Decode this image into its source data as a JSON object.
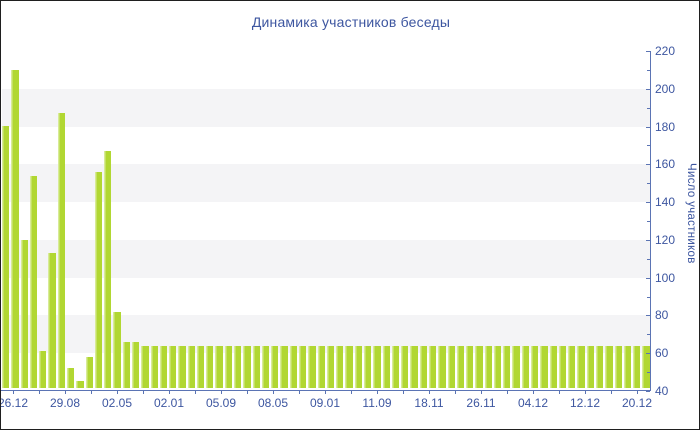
{
  "title": "Динамика участников беседы",
  "y_axis_title": "Число участников",
  "colors": {
    "bar": "#b1d732",
    "bar_edge": "#d8eb97",
    "stripe": "#f4f4f6",
    "axis": "#5b74b4",
    "text": "#3d56a0",
    "border": "#1f1f1f",
    "background": "#ffffff"
  },
  "chart_data": {
    "type": "bar",
    "title": "Динамика участников беседы",
    "xlabel": "",
    "ylabel": "Число участников",
    "ylim": [
      40,
      220
    ],
    "y_major_ticks": [
      40,
      60,
      80,
      100,
      120,
      140,
      160,
      180,
      200,
      220
    ],
    "y_minor_tick_step": 10,
    "gray_bands": [
      [
        60,
        80
      ],
      [
        100,
        120
      ],
      [
        140,
        160
      ],
      [
        180,
        200
      ]
    ],
    "grid": "alternating-horizontal-bands",
    "legend": "none",
    "y_axis_side": "right",
    "x_tick_labels": [
      "26.12",
      "29.08",
      "02.05",
      "02.01",
      "05.09",
      "08.05",
      "09.01",
      "11.09",
      "18.11",
      "26.11",
      "04.12",
      "12.12",
      "20.12"
    ],
    "values": [
      179,
      209,
      119,
      153,
      60,
      112,
      186,
      51,
      44,
      57,
      155,
      166,
      81,
      65,
      65,
      63,
      63,
      63,
      63,
      63,
      63,
      63,
      63,
      63,
      63,
      63,
      63,
      63,
      63,
      63,
      63,
      63,
      63,
      63,
      63,
      63,
      63,
      63,
      63,
      63,
      63,
      63,
      63,
      63,
      63,
      63,
      63,
      63,
      63,
      63,
      63,
      63,
      63,
      63,
      63,
      63,
      63,
      63,
      63,
      63,
      63,
      63,
      63,
      63,
      63,
      63,
      63,
      63,
      63,
      63
    ]
  }
}
